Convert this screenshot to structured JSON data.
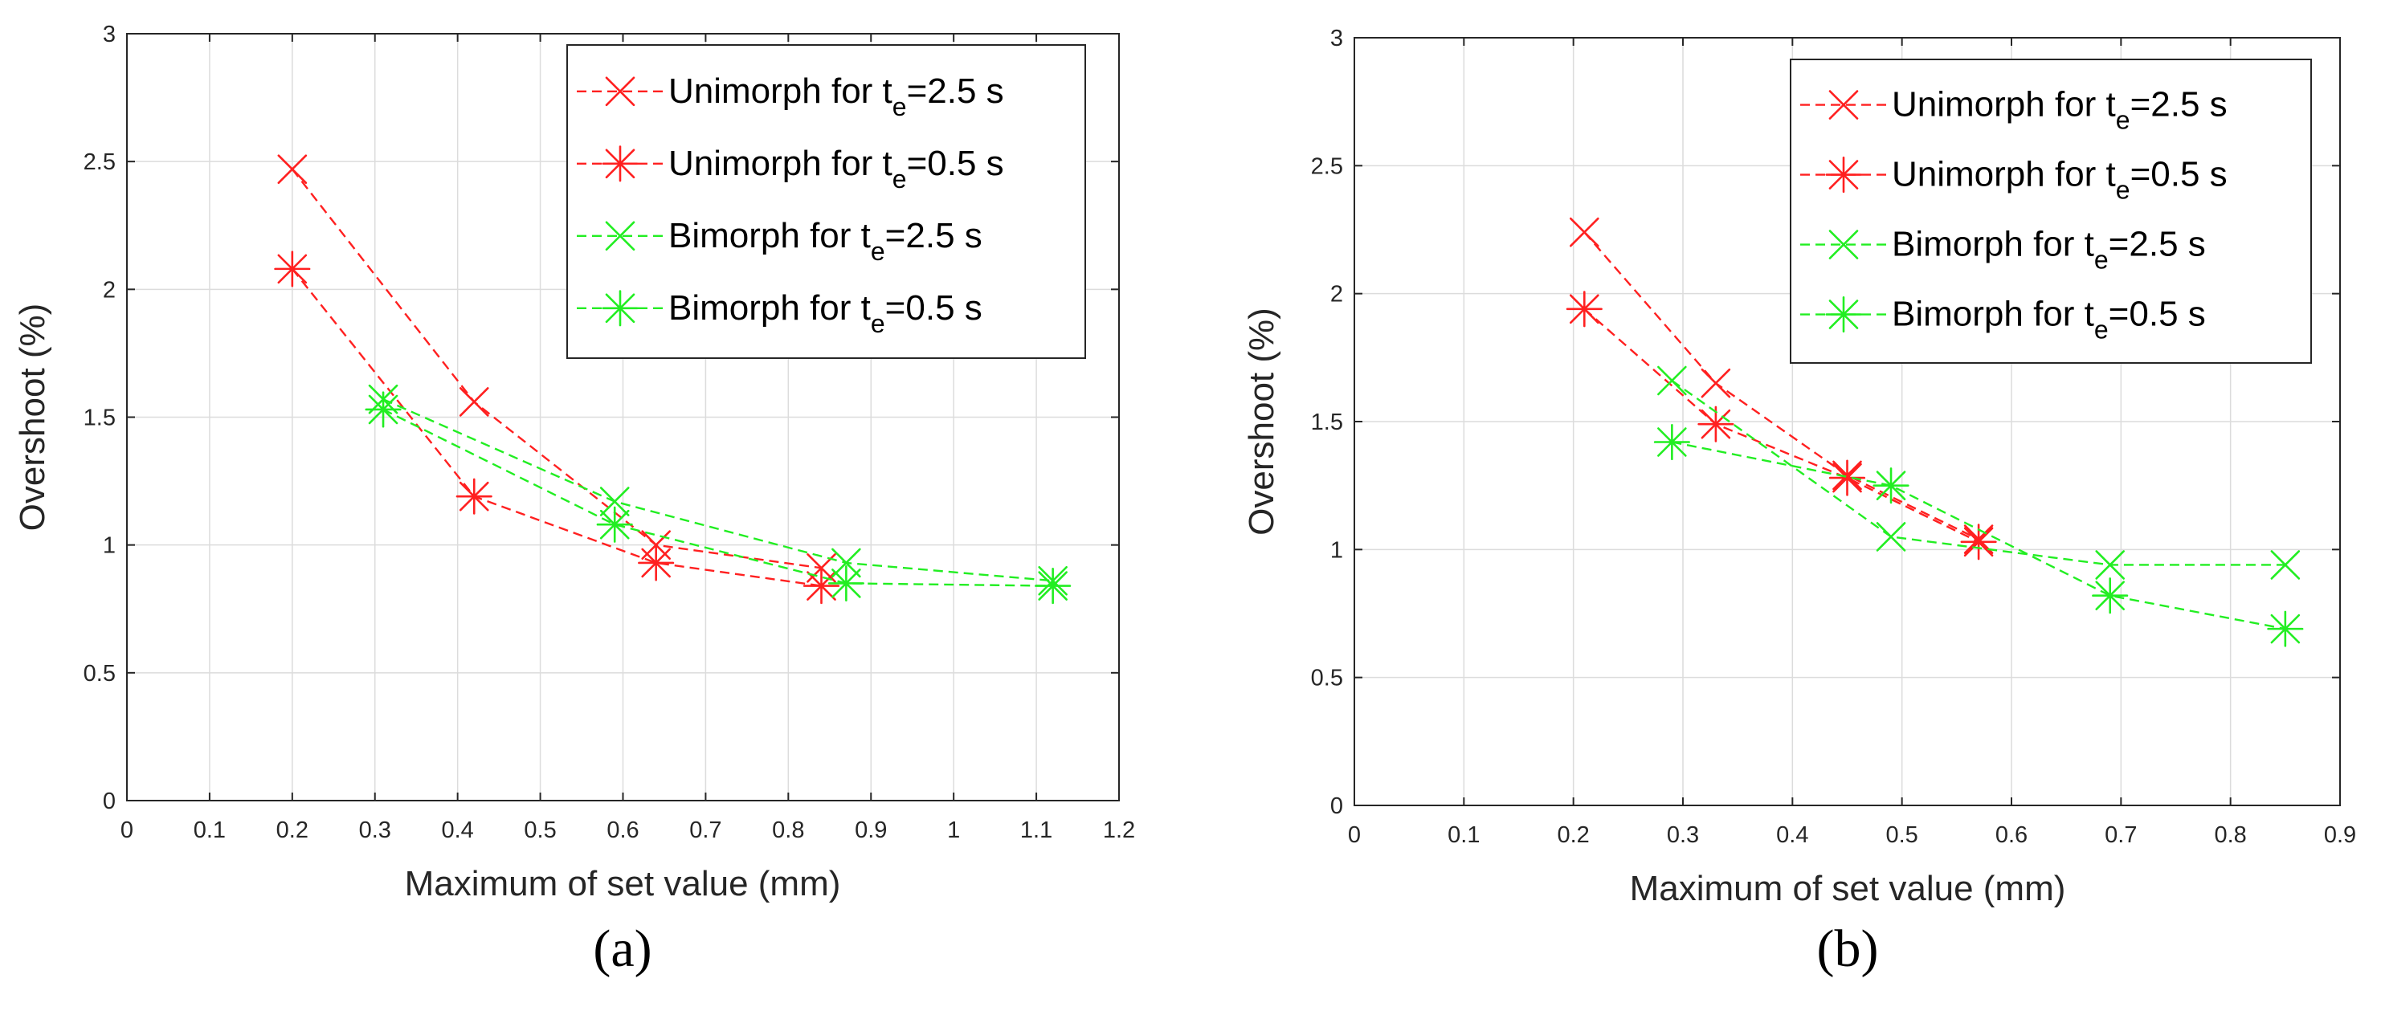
{
  "chart_data": [
    {
      "type": "line",
      "panel_label": "(a)",
      "xlabel": "Maximum of set value (mm)",
      "ylabel": "Overshoot (%)",
      "xlim": [
        0,
        1.2
      ],
      "ylim": [
        0,
        3
      ],
      "xticks": [
        "0",
        "0.1",
        "0.2",
        "0.3",
        "0.4",
        "0.5",
        "0.6",
        "0.7",
        "0.8",
        "0.9",
        "1",
        "1.1",
        "1.2"
      ],
      "yticks": [
        "0",
        "0.5",
        "1",
        "1.5",
        "2",
        "2.5",
        "3"
      ],
      "grid": true,
      "legend_position": "top-right",
      "series": [
        {
          "name_main": "Unimorph for t",
          "name_sub": "e",
          "name_tail": "=2.5 s",
          "color": "#ff2020",
          "marker": "x",
          "x": [
            0.2,
            0.42,
            0.64,
            0.84
          ],
          "y": [
            2.47,
            1.56,
            1.0,
            0.91
          ]
        },
        {
          "name_main": "Unimorph for t",
          "name_sub": "e",
          "name_tail": "=0.5 s",
          "color": "#ff2020",
          "marker": "asterisk",
          "x": [
            0.2,
            0.42,
            0.64,
            0.84
          ],
          "y": [
            2.08,
            1.19,
            0.93,
            0.84
          ]
        },
        {
          "name_main": "Bimorph for t",
          "name_sub": "e",
          "name_tail": "=2.5 s",
          "color": "#22ee22",
          "marker": "x",
          "x": [
            0.31,
            0.59,
            0.87,
            1.12
          ],
          "y": [
            1.57,
            1.17,
            0.93,
            0.86
          ]
        },
        {
          "name_main": "Bimorph for t",
          "name_sub": "e",
          "name_tail": "=0.5 s",
          "color": "#22ee22",
          "marker": "asterisk",
          "x": [
            0.31,
            0.59,
            0.87,
            1.12
          ],
          "y": [
            1.53,
            1.08,
            0.85,
            0.84
          ]
        }
      ]
    },
    {
      "type": "line",
      "panel_label": "(b)",
      "xlabel": "Maximum of set value (mm)",
      "ylabel": "Overshoot (%)",
      "xlim": [
        0,
        0.9
      ],
      "ylim": [
        0,
        3
      ],
      "xticks": [
        "0",
        "0.1",
        "0.2",
        "0.3",
        "0.4",
        "0.5",
        "0.6",
        "0.7",
        "0.8",
        "0.9"
      ],
      "yticks": [
        "0",
        "0.5",
        "1",
        "1.5",
        "2",
        "2.5",
        "3"
      ],
      "grid": true,
      "legend_position": "top-right",
      "series": [
        {
          "name_main": "Unimorph for t",
          "name_sub": "e",
          "name_tail": "=2.5 s",
          "color": "#ff2020",
          "marker": "x",
          "x": [
            0.21,
            0.33,
            0.45,
            0.57
          ],
          "y": [
            2.24,
            1.65,
            1.29,
            1.04
          ]
        },
        {
          "name_main": "Unimorph for t",
          "name_sub": "e",
          "name_tail": "=0.5 s",
          "color": "#ff2020",
          "marker": "asterisk",
          "x": [
            0.21,
            0.33,
            0.45,
            0.57
          ],
          "y": [
            1.94,
            1.49,
            1.28,
            1.03
          ]
        },
        {
          "name_main": "Bimorph for t",
          "name_sub": "e",
          "name_tail": "=2.5 s",
          "color": "#22ee22",
          "marker": "x",
          "x": [
            0.29,
            0.49,
            0.69,
            0.85
          ],
          "y": [
            1.66,
            1.05,
            0.94,
            0.94
          ]
        },
        {
          "name_main": "Bimorph for t",
          "name_sub": "e",
          "name_tail": "=0.5 s",
          "color": "#22ee22",
          "marker": "asterisk",
          "x": [
            0.29,
            0.49,
            0.69,
            0.85
          ],
          "y": [
            1.42,
            1.25,
            0.82,
            0.69
          ]
        }
      ]
    }
  ]
}
